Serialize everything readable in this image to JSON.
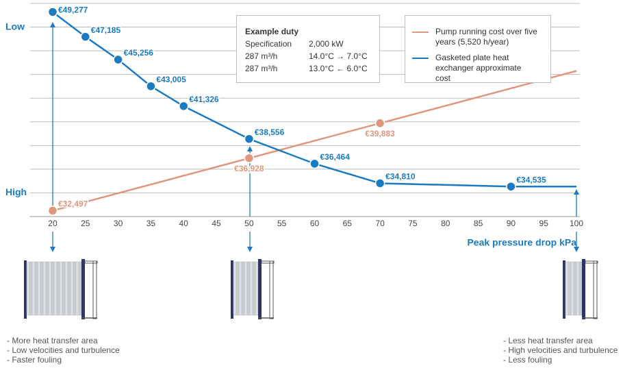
{
  "chart_data": {
    "type": "line",
    "xlabel": "Peak pressure drop kPa",
    "xlim": [
      16.5,
      100.5
    ],
    "xticks": [
      20,
      25,
      30,
      35,
      40,
      45,
      50,
      55,
      60,
      65,
      70,
      75,
      80,
      85,
      90,
      95,
      100
    ],
    "ylim": [
      32000,
      50000
    ],
    "yticks": [
      {
        "value": 48000,
        "label": "Low"
      },
      {
        "value": 34000,
        "label": "High"
      }
    ],
    "ygrid": [
      32000,
      34000,
      36000,
      38000,
      40000,
      42000,
      44000,
      46000,
      48000,
      50000
    ],
    "series": [
      {
        "name": "Pump running cost over five years (5,520 h/year)",
        "color": "#e0967c",
        "x": [
          20,
          50,
          70,
          100
        ],
        "values": [
          32497,
          36928,
          39883,
          44300
        ],
        "value_labels": [
          "€32,497",
          "€36,928",
          "€39,883",
          null
        ]
      },
      {
        "name": "Gasketed plate heat exchanger approximate cost",
        "color": "#1a7bc0",
        "x": [
          20,
          25,
          30,
          35,
          40,
          50,
          60,
          70,
          90,
          100
        ],
        "values": [
          49277,
          47185,
          45256,
          43005,
          41326,
          38556,
          36464,
          34810,
          34535,
          34535
        ],
        "value_labels": [
          "€49,277",
          "€47,185",
          "€45,256",
          "€43,005",
          "€41,326",
          "€38,556",
          "€36,464",
          "€34,810",
          "€34,535",
          null
        ]
      }
    ],
    "example_duty": {
      "title": "Example duty",
      "rows": [
        [
          "Specification",
          "2,000 kW"
        ],
        [
          "287 m³/h",
          "14.0°C → 7.0°C"
        ],
        [
          "287 m³/h",
          "13.0°C ← 6.0°C"
        ]
      ]
    },
    "notes_left": [
      "- More heat transfer area",
      "- Low velocities and turbulence",
      "- Faster fouling"
    ],
    "notes_right": [
      "- Less heat transfer area",
      "- High velocities and turbulence",
      "- Less fouling"
    ]
  }
}
